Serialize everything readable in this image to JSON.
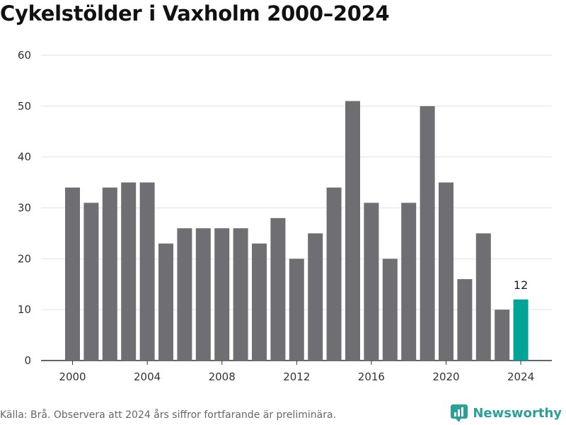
{
  "title": "Cykelstölder i Vaxholm 2000–2024",
  "source": "Källa: Brå. Observera att 2024 års siffror fortfarande är preliminära.",
  "brand": {
    "name": "Newsworthy",
    "icon": "newsworthy-logo-icon"
  },
  "colors": {
    "bar": "#6f6e72",
    "highlight": "#00a497",
    "grid": "#e2e2e2",
    "axis": "#333333",
    "brand": "#2aa198"
  },
  "chart_data": {
    "type": "bar",
    "title": "Cykelstölder i Vaxholm 2000–2024",
    "xlabel": "",
    "ylabel": "",
    "ylim": [
      0,
      60
    ],
    "yticks": [
      0,
      10,
      20,
      30,
      40,
      50,
      60
    ],
    "xticks": [
      2000,
      2004,
      2008,
      2012,
      2016,
      2020,
      2024
    ],
    "grid": true,
    "categories": [
      2000,
      2001,
      2002,
      2003,
      2004,
      2005,
      2006,
      2007,
      2008,
      2009,
      2010,
      2011,
      2012,
      2013,
      2014,
      2015,
      2016,
      2017,
      2018,
      2019,
      2020,
      2021,
      2022,
      2023,
      2024
    ],
    "values": [
      34,
      31,
      34,
      35,
      35,
      23,
      26,
      26,
      26,
      26,
      23,
      28,
      20,
      25,
      34,
      51,
      31,
      20,
      31,
      50,
      35,
      16,
      25,
      10,
      12
    ],
    "highlight": {
      "category": 2024,
      "label": "12"
    }
  }
}
